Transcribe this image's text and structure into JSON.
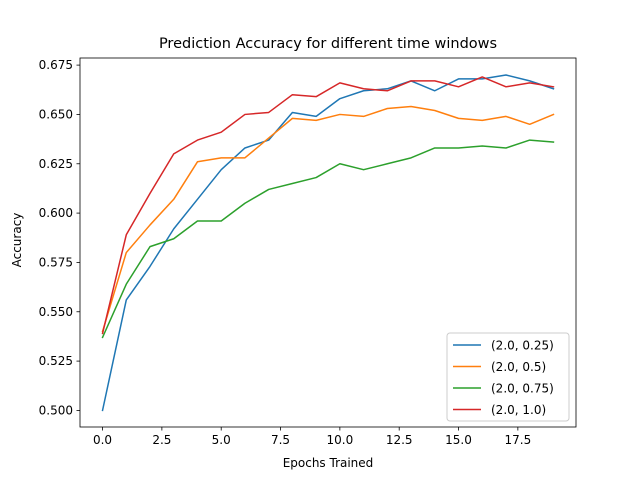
{
  "chart_data": {
    "type": "line",
    "title": "Prediction Accuracy for different time windows",
    "xlabel": "Epochs Trained",
    "ylabel": "Accuracy",
    "xlim": [
      -0.95,
      19.95
    ],
    "ylim": [
      0.4916,
      0.6786
    ],
    "xticks": [
      0.0,
      2.5,
      5.0,
      7.5,
      10.0,
      12.5,
      15.0,
      17.5
    ],
    "xtick_labels": [
      "0.0",
      "2.5",
      "5.0",
      "7.5",
      "10.0",
      "12.5",
      "15.0",
      "17.5"
    ],
    "yticks": [
      0.5,
      0.525,
      0.55,
      0.575,
      0.6,
      0.625,
      0.65,
      0.675
    ],
    "ytick_labels": [
      "0.500",
      "0.525",
      "0.550",
      "0.575",
      "0.600",
      "0.625",
      "0.650",
      "0.675"
    ],
    "grid": false,
    "legend_position": "lower right",
    "x": [
      0,
      1,
      2,
      3,
      4,
      5,
      6,
      7,
      8,
      9,
      10,
      11,
      12,
      13,
      14,
      15,
      16,
      17,
      18,
      19
    ],
    "series": [
      {
        "name": "(2.0, 0.25)",
        "color": "#1f77b4",
        "values": [
          0.5,
          0.556,
          0.573,
          0.592,
          0.607,
          0.622,
          0.633,
          0.637,
          0.651,
          0.649,
          0.658,
          0.662,
          0.663,
          0.667,
          0.662,
          0.668,
          0.668,
          0.67,
          0.667,
          0.663
        ]
      },
      {
        "name": "(2.0, 0.5)",
        "color": "#ff7f0e",
        "values": [
          0.54,
          0.58,
          0.594,
          0.607,
          0.626,
          0.628,
          0.628,
          0.638,
          0.648,
          0.647,
          0.65,
          0.649,
          0.653,
          0.654,
          0.652,
          0.648,
          0.647,
          0.649,
          0.645,
          0.65
        ]
      },
      {
        "name": "(2.0, 0.75)",
        "color": "#2ca02c",
        "values": [
          0.537,
          0.564,
          0.583,
          0.587,
          0.596,
          0.596,
          0.605,
          0.612,
          0.615,
          0.618,
          0.625,
          0.622,
          0.625,
          0.628,
          0.633,
          0.633,
          0.634,
          0.633,
          0.637,
          0.636
        ]
      },
      {
        "name": "(2.0, 1.0)",
        "color": "#d62728",
        "values": [
          0.539,
          0.589,
          0.61,
          0.63,
          0.637,
          0.641,
          0.65,
          0.651,
          0.66,
          0.659,
          0.666,
          0.663,
          0.662,
          0.667,
          0.667,
          0.664,
          0.669,
          0.664,
          0.666,
          0.664
        ]
      }
    ]
  }
}
